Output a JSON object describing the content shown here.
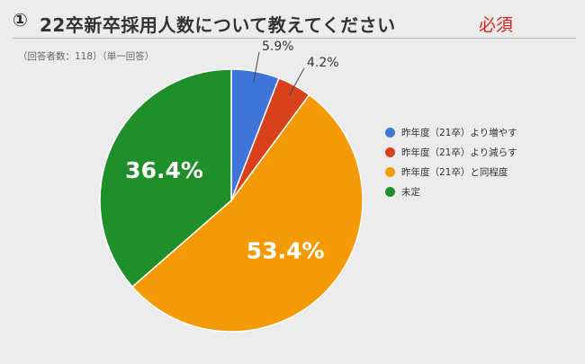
{
  "header": {
    "number": "①",
    "title": "22卒新卒採用人数について教えてください",
    "required": "必須",
    "note": "（回答者数：118）（単一回答）"
  },
  "colors": {
    "blue": "#3f74d9",
    "red": "#d9411c",
    "orange": "#f49a07",
    "green": "#1f8f2a"
  },
  "chart_data": {
    "type": "pie",
    "legend_position": "right",
    "slices": [
      {
        "label": "昨年度（21卒）より増やす",
        "value": 5.9,
        "display": "5.9%",
        "color": "#3f74d9"
      },
      {
        "label": "昨年度（21卒）より減らす",
        "value": 4.2,
        "display": "4.2%",
        "color": "#d9411c"
      },
      {
        "label": "昨年度（21卒）と同程度",
        "value": 53.4,
        "display": "53.4%",
        "color": "#f49a07"
      },
      {
        "label": "未定",
        "value": 36.4,
        "display": "36.4%",
        "color": "#1f8f2a"
      }
    ]
  }
}
